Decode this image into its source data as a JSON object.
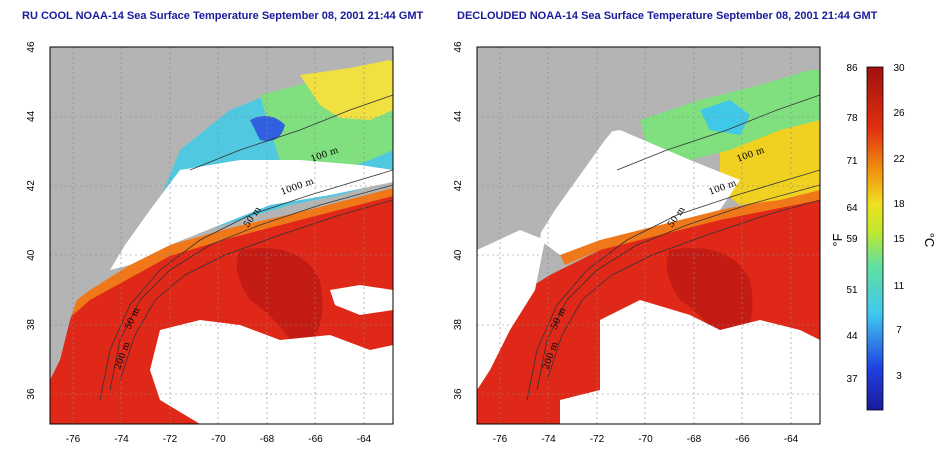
{
  "left_panel": {
    "title": "RU COOL NOAA-14 Sea Surface Temperature September 08, 2001 21:44 GMT",
    "contour_labels": [
      "100 m",
      "1000 m",
      "50 m",
      "200 m",
      "50 m"
    ]
  },
  "right_panel": {
    "title": "DECLOUDED NOAA-14 Sea Surface Temperature September 08, 2001 21:44 GMT",
    "contour_labels": [
      "100 m",
      "100 m",
      "50 m",
      "50 m",
      "200 m"
    ]
  },
  "axes": {
    "x_ticks": [
      "-76",
      "-74",
      "-72",
      "-70",
      "-68",
      "-66",
      "-64"
    ],
    "y_ticks": [
      "46",
      "44",
      "42",
      "40",
      "38",
      "36"
    ]
  },
  "colorbar": {
    "f_labels": [
      "86",
      "78",
      "71",
      "64",
      "59",
      "51",
      "44",
      "37"
    ],
    "c_labels": [
      "30",
      "26",
      "22",
      "18",
      "15",
      "11",
      "7",
      "3"
    ],
    "f_unit": "°F",
    "c_unit": "°C"
  },
  "colors": {
    "land": "#b4b4b4",
    "warm": "#e02818",
    "warm_dark": "#b01410",
    "orange": "#f07818",
    "yellow": "#f0d020",
    "green": "#60d060",
    "cyan": "#40c8e8",
    "blue": "#2050e0",
    "cloud": "#ffffff",
    "title": "#1a1a9a"
  }
}
